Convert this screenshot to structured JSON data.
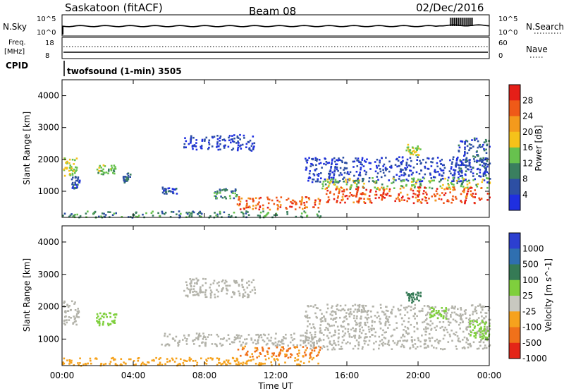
{
  "header": {
    "station": "Saskatoon (fitACF)",
    "beam": "Beam 08",
    "date": "02/Dec/2016"
  },
  "colors": {
    "power": [
      "#1f2fe0",
      "#2d4fa3",
      "#3a7f5f",
      "#67c24e",
      "#f5c21a",
      "#f49a1c",
      "#ef5a18",
      "#e51f18"
    ],
    "velocity": [
      "#2c3fd0",
      "#2f6fb0",
      "#357a55",
      "#7fcf3d",
      "#c8c8c0",
      "#f6a21d",
      "#f0711a",
      "#e42517"
    ],
    "ground": "#b3b3aa"
  },
  "top_panels": {
    "nsky": {
      "label": "N.Sky",
      "left_ticks": [
        "10^5",
        "10^0"
      ],
      "right_ticks": [
        "10^5",
        "10^0"
      ],
      "right_label": "N.Search"
    },
    "freq": {
      "label_line1": "Freq.",
      "label_line2": "[MHz]",
      "left_ticks": [
        "18",
        "8"
      ],
      "right_ticks": [
        "60",
        "0"
      ],
      "right_label": "Nave"
    },
    "cpid": {
      "label": "CPID",
      "value": "twofsound (1-min) 3505"
    }
  },
  "chart_data": [
    {
      "type": "heatmap",
      "name": "power",
      "ylabel": "Slant Range [km]",
      "ylim": [
        180,
        4500
      ],
      "yticks": [
        1000,
        2000,
        3000,
        4000
      ],
      "xlim": [
        0,
        24
      ],
      "xticks": [
        "00:00",
        "04:00",
        "08:00",
        "12:00",
        "16:00",
        "20:00",
        "00:00"
      ],
      "colorbar": {
        "label": "Power [dB]",
        "ticks": [
          "4",
          "8",
          "12",
          "16",
          "20",
          "24",
          "28"
        ],
        "range": [
          0,
          32
        ]
      },
      "regions": [
        {
          "t0": 0.05,
          "t1": 0.8,
          "r0": 1500,
          "r1": 2100,
          "level": 16
        },
        {
          "t0": 0.5,
          "t1": 0.95,
          "r0": 1100,
          "r1": 1500,
          "level": 6
        },
        {
          "t0": 1.9,
          "t1": 3.0,
          "r0": 1550,
          "r1": 1850,
          "level": 14
        },
        {
          "t0": 3.4,
          "t1": 3.8,
          "r0": 1300,
          "r1": 1600,
          "level": 8
        },
        {
          "t0": 5.6,
          "t1": 6.4,
          "r0": 950,
          "r1": 1150,
          "level": 6
        },
        {
          "t0": 6.8,
          "t1": 10.8,
          "r0": 2300,
          "r1": 2800,
          "level": 4
        },
        {
          "t0": 8.5,
          "t1": 9.8,
          "r0": 800,
          "r1": 1100,
          "level": 10
        },
        {
          "t0": 9.8,
          "t1": 14.5,
          "r0": 450,
          "r1": 850,
          "level": 26
        },
        {
          "t0": 0.0,
          "t1": 14.5,
          "r0": 200,
          "r1": 400,
          "level": 10
        },
        {
          "t0": 13.6,
          "t1": 24.0,
          "r0": 1300,
          "r1": 2100,
          "level": 4
        },
        {
          "t0": 14.5,
          "t1": 24.0,
          "r0": 1100,
          "r1": 1450,
          "level": 14
        },
        {
          "t0": 14.8,
          "t1": 24.0,
          "r0": 650,
          "r1": 1150,
          "level": 27
        },
        {
          "t0": 19.3,
          "t1": 20.1,
          "r0": 2150,
          "r1": 2500,
          "level": 16
        },
        {
          "t0": 22.2,
          "t1": 24.0,
          "r0": 1500,
          "r1": 2700,
          "level": 6
        }
      ]
    },
    {
      "type": "heatmap",
      "name": "velocity",
      "ylabel": "Slant Range [km]",
      "ylim": [
        180,
        4500
      ],
      "yticks": [
        1000,
        2000,
        3000,
        4000
      ],
      "xlim": [
        0,
        24
      ],
      "xticks": [
        "00:00",
        "04:00",
        "08:00",
        "12:00",
        "16:00",
        "20:00",
        "00:00"
      ],
      "xlabel": "Time UT",
      "colorbar": {
        "label": "Velocity [m s^-1]",
        "ticks": [
          "1000",
          "500",
          "100",
          "25",
          "-25",
          "-100",
          "-500",
          "-1000"
        ]
      },
      "regions": [
        {
          "t0": 0.05,
          "t1": 0.9,
          "r0": 1450,
          "r1": 2200,
          "level": "ground"
        },
        {
          "t0": 1.9,
          "t1": 3.0,
          "r0": 1450,
          "r1": 1850,
          "level": 50
        },
        {
          "t0": 6.8,
          "t1": 10.8,
          "r0": 2300,
          "r1": 2900,
          "level": "ground"
        },
        {
          "t0": 5.5,
          "t1": 14.5,
          "r0": 800,
          "r1": 1200,
          "level": "ground"
        },
        {
          "t0": 9.8,
          "t1": 14.5,
          "r0": 450,
          "r1": 800,
          "level": -120
        },
        {
          "t0": 0.0,
          "t1": 14.5,
          "r0": 200,
          "r1": 450,
          "level": -60
        },
        {
          "t0": 13.6,
          "t1": 24.0,
          "r0": 700,
          "r1": 2100,
          "level": "ground"
        },
        {
          "t0": 19.3,
          "t1": 20.1,
          "r0": 2150,
          "r1": 2500,
          "level": 300
        },
        {
          "t0": 20.6,
          "t1": 21.6,
          "r0": 1650,
          "r1": 2000,
          "level": 60
        },
        {
          "t0": 22.8,
          "t1": 24.0,
          "r0": 1000,
          "r1": 1600,
          "level": 60
        }
      ]
    }
  ]
}
